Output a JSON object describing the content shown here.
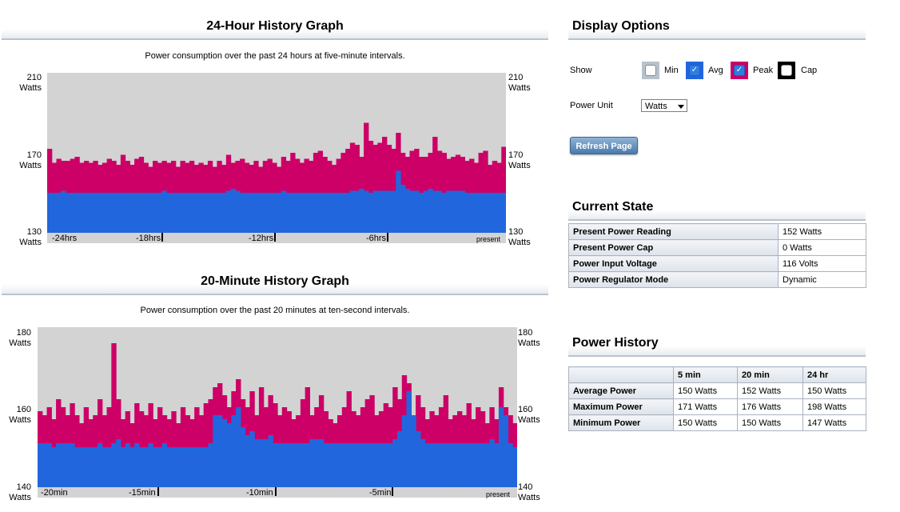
{
  "graph24": {
    "title": "24-Hour History Graph",
    "description": "Power consumption over the past 24 hours at five-minute intervals.",
    "y_labels": [
      {
        "value": "210",
        "unit": "Watts"
      },
      {
        "value": "170",
        "unit": "Watts"
      },
      {
        "value": "130",
        "unit": "Watts"
      }
    ],
    "x_labels": [
      "-24hrs",
      "-18hrs",
      "-12hrs",
      "-6hrs",
      "present"
    ]
  },
  "graph20": {
    "title": "20-Minute History Graph",
    "description": "Power consumption over the past 20 minutes at ten-second intervals.",
    "y_labels": [
      {
        "value": "180",
        "unit": "Watts"
      },
      {
        "value": "160",
        "unit": "Watts"
      },
      {
        "value": "140",
        "unit": "Watts"
      }
    ],
    "x_labels": [
      "-20min",
      "-15min",
      "-10min",
      "-5min",
      "present"
    ]
  },
  "colors": {
    "peak": "#cc0066",
    "avg": "#2266dd",
    "background": "#d3d3d3",
    "button": "#4a7aab"
  },
  "display_options": {
    "title": "Display Options",
    "show_label": "Show",
    "checkboxes": [
      {
        "label": "Min",
        "checked": false,
        "color": "#b8c2cc"
      },
      {
        "label": "Avg",
        "checked": true,
        "color": "#2266dd"
      },
      {
        "label": "Peak",
        "checked": true,
        "color": "#cc0066"
      },
      {
        "label": "Cap",
        "checked": false,
        "color": "#000000"
      }
    ],
    "power_unit_label": "Power Unit",
    "power_unit_value": "Watts",
    "refresh_label": "Refresh Page"
  },
  "current_state": {
    "title": "Current State",
    "rows": [
      {
        "key": "Present Power Reading",
        "value": "152 Watts"
      },
      {
        "key": "Present Power Cap",
        "value": "0 Watts"
      },
      {
        "key": "Power Input Voltage",
        "value": "116 Volts"
      },
      {
        "key": "Power Regulator Mode",
        "value": "Dynamic"
      }
    ]
  },
  "power_history": {
    "title": "Power History",
    "headers": [
      "5 min",
      "20 min",
      "24 hr"
    ],
    "rows": [
      {
        "label": "Average Power",
        "values": [
          "150 Watts",
          "152 Watts",
          "150 Watts"
        ]
      },
      {
        "label": "Maximum Power",
        "values": [
          "171 Watts",
          "176 Watts",
          "198 Watts"
        ]
      },
      {
        "label": "Minimum Power",
        "values": [
          "150 Watts",
          "150 Watts",
          "147 Watts"
        ]
      }
    ]
  },
  "chart_data": [
    {
      "type": "bar",
      "title": "24-Hour History Graph",
      "ylim": [
        130,
        210
      ],
      "x_ticks": [
        "-24hrs",
        "-18hrs",
        "-12hrs",
        "-6hrs",
        "present"
      ],
      "series": [
        {
          "name": "Peak",
          "color": "#cc0066",
          "values": [
            172,
            165,
            167,
            166,
            166,
            167,
            168,
            165,
            166,
            165,
            166,
            164,
            165,
            167,
            166,
            164,
            169,
            166,
            164,
            167,
            168,
            165,
            163,
            166,
            165,
            166,
            165,
            166,
            163,
            166,
            165,
            166,
            164,
            165,
            164,
            166,
            163,
            166,
            164,
            169,
            165,
            166,
            167,
            165,
            164,
            166,
            163,
            166,
            167,
            165,
            163,
            168,
            166,
            170,
            167,
            165,
            167,
            166,
            170,
            171,
            168,
            166,
            164,
            167,
            170,
            172,
            175,
            174,
            168,
            185,
            176,
            174,
            175,
            178,
            174,
            172,
            180,
            170,
            168,
            171,
            172,
            168,
            168,
            170,
            178,
            171,
            170,
            167,
            168,
            169,
            168,
            166,
            167,
            165,
            170,
            171,
            164,
            166,
            165,
            173
          ]
        },
        {
          "name": "Avg",
          "color": "#2266dd",
          "values": [
            150,
            150,
            150,
            151,
            150,
            150,
            150,
            150,
            150,
            150,
            150,
            150,
            150,
            150,
            150,
            150,
            150,
            150,
            150,
            150,
            150,
            150,
            150,
            150,
            150,
            151,
            150,
            150,
            150,
            150,
            150,
            150,
            150,
            150,
            150,
            150,
            150,
            150,
            150,
            151,
            152,
            151,
            150,
            150,
            150,
            150,
            150,
            150,
            150,
            150,
            150,
            151,
            150,
            150,
            150,
            150,
            150,
            150,
            150,
            150,
            150,
            150,
            150,
            150,
            150,
            150,
            151,
            151,
            152,
            151,
            150,
            151,
            151,
            151,
            151,
            151,
            161,
            154,
            152,
            151,
            151,
            150,
            151,
            152,
            151,
            151,
            150,
            151,
            151,
            151,
            151,
            150,
            150,
            150,
            150,
            150,
            150,
            150,
            150,
            150
          ]
        }
      ]
    },
    {
      "type": "bar",
      "title": "20-Minute History Graph",
      "ylim": [
        140,
        180
      ],
      "x_ticks": [
        "-20min",
        "-15min",
        "-10min",
        "-5min",
        "present"
      ],
      "series": [
        {
          "name": "Peak",
          "color": "#cc0066",
          "values": [
            159,
            158,
            160,
            157,
            162,
            160,
            158,
            161,
            158,
            156,
            160,
            157,
            158,
            162,
            158,
            160,
            176,
            162,
            157,
            159,
            156,
            161,
            159,
            158,
            161,
            157,
            160,
            158,
            157,
            159,
            156,
            160,
            158,
            157,
            160,
            158,
            161,
            162,
            165,
            166,
            163,
            160,
            164,
            167,
            162,
            160,
            164,
            158,
            165,
            160,
            163,
            161,
            158,
            160,
            159,
            157,
            158,
            162,
            165,
            158,
            160,
            163,
            159,
            157,
            156,
            158,
            160,
            164,
            159,
            158,
            160,
            162,
            163,
            158,
            159,
            161,
            160,
            165,
            162,
            168,
            166,
            158,
            163,
            160,
            157,
            159,
            158,
            160,
            163,
            157,
            158,
            159,
            158,
            161,
            157,
            160,
            159,
            156,
            160,
            157,
            165,
            160,
            158,
            156
          ]
        },
        {
          "name": "Avg",
          "color": "#2266dd",
          "values": [
            151,
            151,
            151,
            150,
            151,
            151,
            151,
            151,
            150,
            150,
            150,
            150,
            150,
            151,
            150,
            150,
            151,
            152,
            150,
            151,
            150,
            151,
            150,
            150,
            151,
            150,
            150,
            151,
            150,
            150,
            150,
            150,
            150,
            150,
            150,
            150,
            150,
            151,
            158,
            158,
            157,
            156,
            158,
            160,
            155,
            153,
            154,
            152,
            152,
            152,
            153,
            151,
            151,
            151,
            151,
            151,
            151,
            151,
            151,
            152,
            152,
            152,
            151,
            151,
            151,
            151,
            151,
            151,
            151,
            151,
            151,
            151,
            151,
            151,
            151,
            151,
            151,
            152,
            154,
            158,
            164,
            158,
            154,
            152,
            151,
            151,
            151,
            151,
            151,
            151,
            151,
            151,
            151,
            151,
            151,
            151,
            151,
            151,
            152,
            151,
            160,
            158,
            151,
            150
          ]
        }
      ]
    }
  ]
}
